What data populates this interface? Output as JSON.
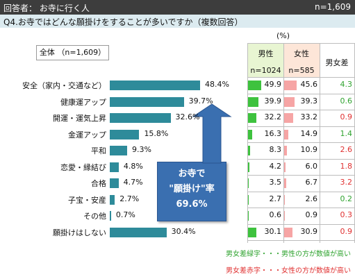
{
  "header": {
    "respondents": "回答者： お寺に行く人",
    "n": "n=1,609"
  },
  "question": "Q4.お寺ではどんな願掛けをすることが多いですか（複数回答）",
  "unit_label": "(%)",
  "total_label": "全体 （n=1,609）",
  "table_headers": {
    "male": "男性",
    "male_n": "n=1024",
    "female": "女性",
    "female_n": "n=585",
    "diff": "男女差"
  },
  "callout": {
    "line1": "お寺で",
    "line2": "\"願掛け\"率",
    "line3": "69.6%"
  },
  "notes": {
    "green": "男女差緑字・・・男性の方が数値が高い",
    "red": "男女差赤字・・・女性の方が数値が高い"
  },
  "colors": {
    "bar": "#2e8b9a",
    "male": "#3ec23e",
    "female": "#f6a5a5",
    "green_text": "#2fa32f",
    "red_text": "#e03030",
    "callout": "#3a6fb0"
  },
  "chart_data": {
    "type": "bar",
    "categories": [
      "安全（家内・交通など）",
      "健康運アップ",
      "開運・運気上昇",
      "金運アップ",
      "平和",
      "恋愛・縁結び",
      "合格",
      "子宝・安産",
      "その他",
      "願掛けはしない"
    ],
    "values": [
      48.4,
      39.7,
      32.6,
      15.8,
      9.3,
      4.8,
      4.7,
      2.7,
      0.7,
      30.4
    ],
    "labels": [
      "48.4%",
      "39.7%",
      "32.6%",
      "15.8%",
      "9.3%",
      "4.8%",
      "4.7%",
      "2.7%",
      "0.7%",
      "30.4%"
    ],
    "male": [
      49.9,
      39.9,
      32.2,
      16.3,
      8.3,
      4.2,
      3.5,
      2.7,
      0.6,
      30.1
    ],
    "female": [
      45.6,
      39.3,
      33.2,
      14.9,
      10.9,
      6.0,
      6.7,
      2.6,
      0.9,
      30.9
    ],
    "diff": [
      "4.3",
      "0.6",
      "0.9",
      "1.4",
      "2.6",
      "1.8",
      "3.2",
      "0.2",
      "0.3",
      "0.9"
    ],
    "diff_color": [
      "green",
      "green",
      "red",
      "green",
      "red",
      "red",
      "red",
      "green",
      "red",
      "red"
    ]
  }
}
